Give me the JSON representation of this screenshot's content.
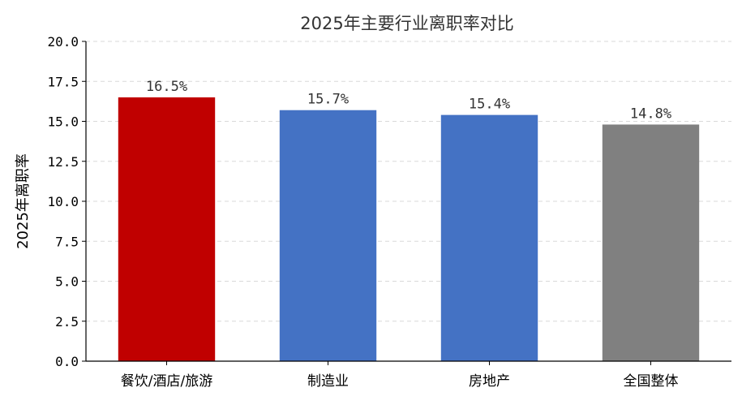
{
  "chart_data": {
    "type": "bar",
    "title": "2025年主要行业离职率对比",
    "xlabel": "",
    "ylabel": "2025年离职率",
    "categories": [
      "餐饮/酒店/旅游",
      "制造业",
      "房地产",
      "全国整体"
    ],
    "values": [
      16.5,
      15.7,
      15.4,
      14.8
    ],
    "data_labels": [
      "16.5%",
      "15.7%",
      "15.4%",
      "14.8%"
    ],
    "bar_colors": [
      "#c00000",
      "#4472c4",
      "#4472c4",
      "#808080"
    ],
    "ylim": [
      0,
      20
    ],
    "yticks": [
      0,
      2.5,
      5,
      7.5,
      10,
      12.5,
      15,
      17.5,
      20
    ],
    "ytick_labels": [
      "0.0",
      "2.5",
      "5.0",
      "7.5",
      "10.0",
      "12.5",
      "15.0",
      "17.5",
      "20.0"
    ],
    "grid": "y-dashed",
    "legend": "none"
  }
}
